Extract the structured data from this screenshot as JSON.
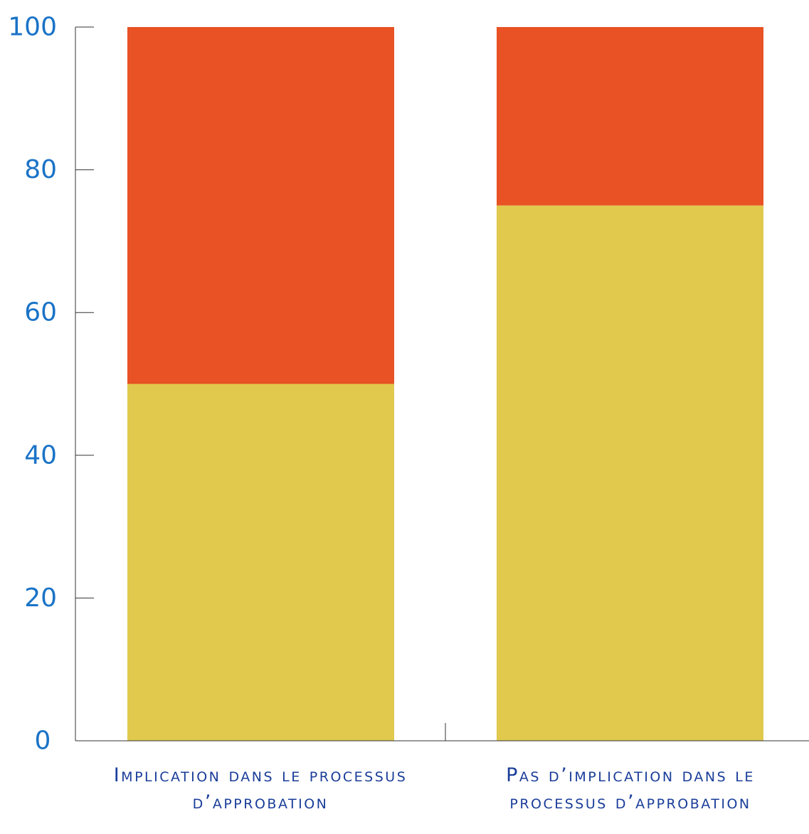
{
  "chart_data": {
    "type": "bar",
    "stacked": true,
    "categories": [
      "Implication dans le processus d’approbation",
      "Pas d’implication dans le processus d’approbation"
    ],
    "series": [
      {
        "values": [
          50,
          75
        ],
        "color": "#e0c94d"
      },
      {
        "values": [
          50,
          25
        ],
        "color": "#e85224"
      }
    ],
    "yticks": [
      "0",
      "20",
      "40",
      "60",
      "80",
      "100"
    ],
    "ylim": [
      0,
      100
    ],
    "title": "",
    "xlabel": "",
    "ylabel": "",
    "grid": false,
    "legend": false,
    "colors": {
      "axis": "#333333",
      "tick_label": "#1a73c7",
      "category_label": "#1a3d99"
    }
  }
}
